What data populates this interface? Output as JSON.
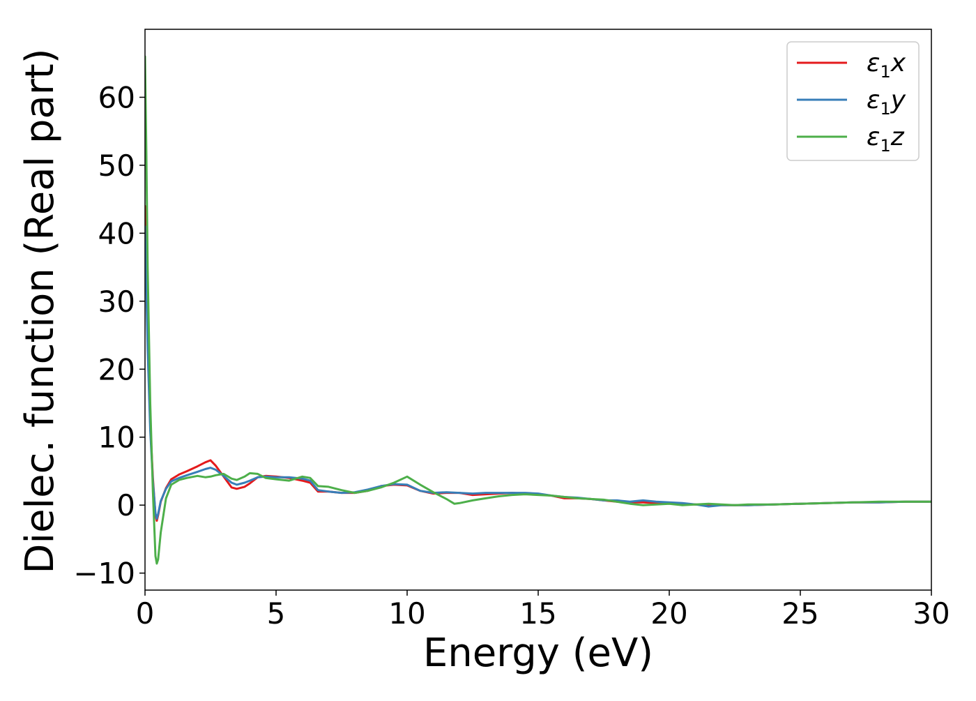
{
  "chart_data": {
    "type": "line",
    "xlabel": "Energy (eV)",
    "ylabel": "Dielec. function (Real part)",
    "xlim": [
      0,
      30
    ],
    "ylim": [
      -12.5,
      70
    ],
    "xticks": [
      0,
      5,
      10,
      15,
      20,
      25,
      30
    ],
    "yticks": [
      -10,
      0,
      10,
      20,
      30,
      40,
      50,
      60
    ],
    "xtick_labels": [
      "0",
      "5",
      "10",
      "15",
      "20",
      "25",
      "30"
    ],
    "ytick_labels": [
      "−10",
      "0",
      "10",
      "20",
      "30",
      "40",
      "50",
      "60"
    ],
    "grid": false,
    "legend_position": "top-right",
    "series": [
      {
        "name": "ε1x",
        "legend": {
          "base": "ε",
          "sub": "1",
          "suffix": "x"
        },
        "color": "#e41a1c",
        "x": [
          0,
          0.05,
          0.1,
          0.2,
          0.3,
          0.4,
          0.45,
          0.5,
          0.6,
          0.8,
          1.0,
          1.3,
          1.6,
          2.0,
          2.3,
          2.5,
          2.7,
          3.0,
          3.3,
          3.5,
          3.8,
          4.0,
          4.3,
          4.6,
          5.0,
          5.5,
          6.0,
          6.3,
          6.6,
          7.0,
          7.5,
          8.0,
          8.5,
          9.0,
          9.5,
          10.0,
          10.5,
          11.0,
          11.5,
          12.0,
          12.5,
          13.0,
          13.5,
          14.0,
          14.5,
          15.0,
          15.5,
          16.0,
          16.5,
          17.0,
          17.5,
          18.0,
          18.5,
          19.0,
          19.5,
          20.0,
          20.5,
          21.0,
          21.5,
          22.0,
          22.5,
          23.0,
          24.0,
          25.0,
          26.0,
          27.0,
          28.0,
          29.0,
          30.0
        ],
        "y": [
          44,
          35,
          25,
          12,
          4,
          -1.5,
          -2.3,
          -1.5,
          0.5,
          2.5,
          3.8,
          4.5,
          5.0,
          5.7,
          6.3,
          6.6,
          5.8,
          4.2,
          2.6,
          2.4,
          2.7,
          3.2,
          4.1,
          4.3,
          4.2,
          4.0,
          3.6,
          3.3,
          2.0,
          2.0,
          1.8,
          1.8,
          2.1,
          2.8,
          3.0,
          2.9,
          2.1,
          1.7,
          1.8,
          1.8,
          1.5,
          1.6,
          1.7,
          1.8,
          1.7,
          1.6,
          1.4,
          1.0,
          1.0,
          0.9,
          0.7,
          0.5,
          0.4,
          0.4,
          0.3,
          0.3,
          0.2,
          0.1,
          0.0,
          0.0,
          0.0,
          0.0,
          0.1,
          0.2,
          0.3,
          0.4,
          0.4,
          0.5,
          0.5
        ]
      },
      {
        "name": "ε1y",
        "legend": {
          "base": "ε",
          "sub": "1",
          "suffix": "y"
        },
        "color": "#377eb8",
        "x": [
          0,
          0.05,
          0.1,
          0.2,
          0.3,
          0.4,
          0.45,
          0.5,
          0.6,
          0.8,
          1.0,
          1.3,
          1.6,
          2.0,
          2.3,
          2.5,
          2.7,
          3.0,
          3.3,
          3.5,
          3.8,
          4.0,
          4.3,
          4.6,
          5.0,
          5.5,
          6.0,
          6.3,
          6.6,
          7.0,
          7.5,
          8.0,
          8.5,
          9.0,
          9.5,
          10.0,
          10.5,
          11.0,
          11.5,
          12.0,
          12.5,
          13.0,
          13.5,
          14.0,
          14.5,
          15.0,
          15.5,
          16.0,
          16.5,
          17.0,
          17.5,
          18.0,
          18.5,
          19.0,
          19.5,
          20.0,
          20.5,
          21.0,
          21.5,
          22.0,
          22.5,
          23.0,
          24.0,
          25.0,
          26.0,
          27.0,
          28.0,
          29.0,
          30.0
        ],
        "y": [
          41,
          32,
          23,
          11,
          3.5,
          -1.2,
          -2.0,
          -1.3,
          0.6,
          2.4,
          3.5,
          4.0,
          4.4,
          4.9,
          5.3,
          5.5,
          5.2,
          4.3,
          3.3,
          3.0,
          3.3,
          3.6,
          4.1,
          4.2,
          4.1,
          4.1,
          3.9,
          3.6,
          2.2,
          2.0,
          1.8,
          1.9,
          2.3,
          2.8,
          3.1,
          3.0,
          2.1,
          1.8,
          1.9,
          1.8,
          1.7,
          1.8,
          1.8,
          1.8,
          1.8,
          1.7,
          1.4,
          1.2,
          1.1,
          0.9,
          0.7,
          0.7,
          0.5,
          0.7,
          0.5,
          0.4,
          0.3,
          0.1,
          -0.2,
          0.0,
          0.0,
          0.0,
          0.1,
          0.2,
          0.3,
          0.4,
          0.4,
          0.5,
          0.5
        ]
      },
      {
        "name": "ε1z",
        "legend": {
          "base": "ε",
          "sub": "1",
          "suffix": "z"
        },
        "color": "#4daf4a",
        "x": [
          0,
          0.05,
          0.1,
          0.2,
          0.3,
          0.4,
          0.45,
          0.5,
          0.6,
          0.8,
          1.0,
          1.3,
          1.6,
          2.0,
          2.3,
          2.5,
          2.7,
          3.0,
          3.3,
          3.5,
          3.8,
          4.0,
          4.3,
          4.6,
          5.0,
          5.5,
          6.0,
          6.3,
          6.6,
          7.0,
          7.5,
          8.0,
          8.5,
          9.0,
          9.5,
          10.0,
          10.5,
          11.0,
          11.5,
          11.8,
          12.0,
          12.5,
          13.0,
          13.5,
          14.0,
          14.5,
          15.0,
          15.5,
          16.0,
          16.5,
          17.0,
          17.5,
          18.0,
          18.5,
          19.0,
          19.5,
          20.0,
          20.5,
          21.0,
          21.5,
          22.0,
          22.5,
          23.0,
          24.0,
          25.0,
          26.0,
          27.0,
          28.0,
          29.0,
          30.0
        ],
        "y": [
          66,
          52,
          35,
          15,
          2,
          -7.5,
          -8.6,
          -8.0,
          -4.0,
          1.0,
          3.0,
          3.7,
          4.0,
          4.3,
          4.1,
          4.2,
          4.4,
          4.6,
          3.9,
          3.7,
          4.2,
          4.7,
          4.6,
          4.0,
          3.8,
          3.6,
          4.2,
          4.0,
          2.8,
          2.7,
          2.2,
          1.8,
          2.1,
          2.6,
          3.3,
          4.2,
          3.0,
          1.9,
          0.9,
          0.2,
          0.3,
          0.7,
          1.0,
          1.3,
          1.5,
          1.6,
          1.5,
          1.4,
          1.2,
          1.0,
          0.9,
          0.8,
          0.5,
          0.2,
          0.0,
          0.1,
          0.2,
          0.0,
          0.1,
          0.2,
          0.1,
          0.0,
          0.1,
          0.1,
          0.2,
          0.3,
          0.4,
          0.5,
          0.5,
          0.5
        ]
      }
    ]
  }
}
